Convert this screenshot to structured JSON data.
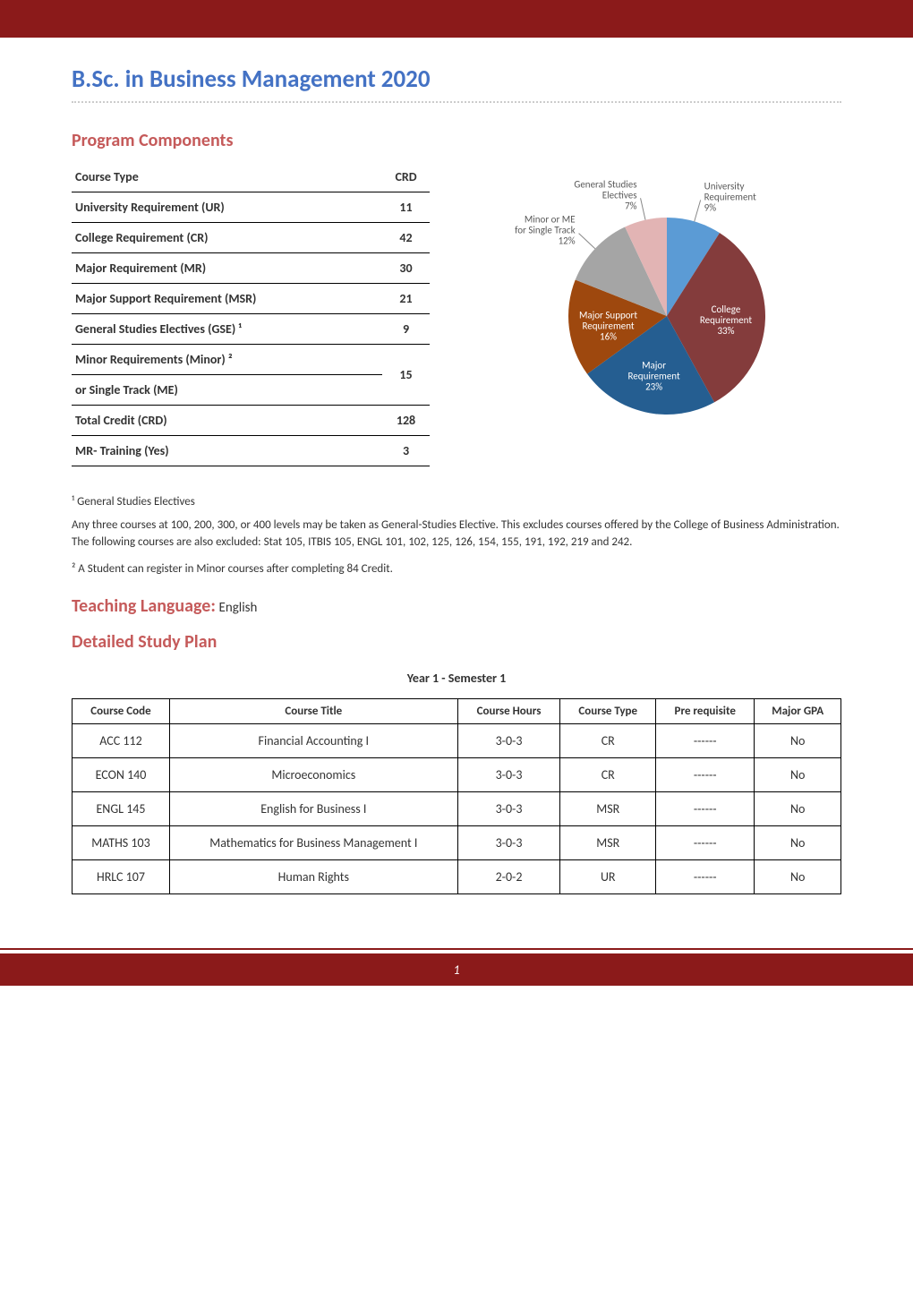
{
  "page": {
    "title": "B.Sc. in Business Management 2020",
    "h2_components": "Program Components",
    "h2_teaching": "Teaching Language:",
    "teaching_lang": "English",
    "h2_plan": "Detailed Study Plan",
    "footer_page": "1"
  },
  "components_table": {
    "header_type": "Course Type",
    "header_crd": "CRD",
    "rows": [
      {
        "label": "University Requirement (UR)",
        "value": "11"
      },
      {
        "label": "College Requirement (CR)",
        "value": "42"
      },
      {
        "label": "Major Requirement (MR)",
        "value": "30"
      },
      {
        "label": "Major Support Requirement (MSR)",
        "value": "21"
      },
      {
        "label": "General Studies Electives (GSE) ¹",
        "value": "9"
      },
      {
        "label": "Minor Requirements (Minor) ²",
        "value": ""
      },
      {
        "label": "or Single Track (ME)",
        "value": "15",
        "merge_above": true
      },
      {
        "label": "Total Credit (CRD)",
        "value": "128"
      },
      {
        "label": "MR- Training (Yes)",
        "value": "3"
      }
    ]
  },
  "pie_chart": {
    "type": "pie",
    "background_color": "#ffffff",
    "title_fontsize": 11,
    "label_fontsize": 11,
    "label_color": "#595959",
    "slices": [
      {
        "label": "University Requirement",
        "percent": 9,
        "color": "#5b9bd5",
        "text_color": "#595959",
        "label_pos": "outside"
      },
      {
        "label": "College Requirement",
        "percent": 33,
        "color": "#843c3c",
        "text_color": "#ffffff",
        "label_pos": "inside"
      },
      {
        "label": "Major Requirement",
        "percent": 23,
        "color": "#255e91",
        "text_color": "#ffffff",
        "label_pos": "inside"
      },
      {
        "label": "Major Support Requirement",
        "percent": 16,
        "color": "#9e480e",
        "text_color": "#ffffff",
        "label_pos": "inside"
      },
      {
        "label": "Minor or ME for Single Track",
        "percent": 12,
        "color": "#a5a5a5",
        "text_color": "#595959",
        "label_pos": "outside"
      },
      {
        "label": "General Studies Electives",
        "percent": 7,
        "color": "#e2b4b4",
        "text_color": "#595959",
        "label_pos": "outside"
      }
    ]
  },
  "footnotes": {
    "f1_title": "¹ General Studies Electives",
    "f1_body": "Any three courses at 100, 200, 300, or 400 levels may be taken as General-Studies Elective. This excludes courses offered by the College of Business Administration. The following courses are also excluded: Stat 105, ITBIS 105, ENGL 101, 102, 125, 126, 154, 155, 191, 192, 219 and 242.",
    "f2": "² A Student can register in Minor courses after completing 84 Credit."
  },
  "semester": {
    "title": "Year 1 - Semester 1",
    "headers": {
      "code": "Course Code",
      "title": "Course Title",
      "hours": "Course Hours",
      "type": "Course Type",
      "prereq": "Pre requisite",
      "gpa": "Major GPA"
    },
    "rows": [
      {
        "code": "ACC 112",
        "title": "Financial Accounting I",
        "hours": "3-0-3",
        "type": "CR",
        "prereq": "------",
        "gpa": "No"
      },
      {
        "code": "ECON 140",
        "title": "Microeconomics",
        "hours": "3-0-3",
        "type": "CR",
        "prereq": "------",
        "gpa": "No"
      },
      {
        "code": "ENGL 145",
        "title": "English for Business I",
        "hours": "3-0-3",
        "type": "MSR",
        "prereq": "------",
        "gpa": "No"
      },
      {
        "code": "MATHS 103",
        "title": "Mathematics for Business Management I",
        "hours": "3-0-3",
        "type": "MSR",
        "prereq": "------",
        "gpa": "No"
      },
      {
        "code": "HRLC 107",
        "title": "Human Rights",
        "hours": "2-0-2",
        "type": "UR",
        "prereq": "------",
        "gpa": "No"
      }
    ]
  }
}
